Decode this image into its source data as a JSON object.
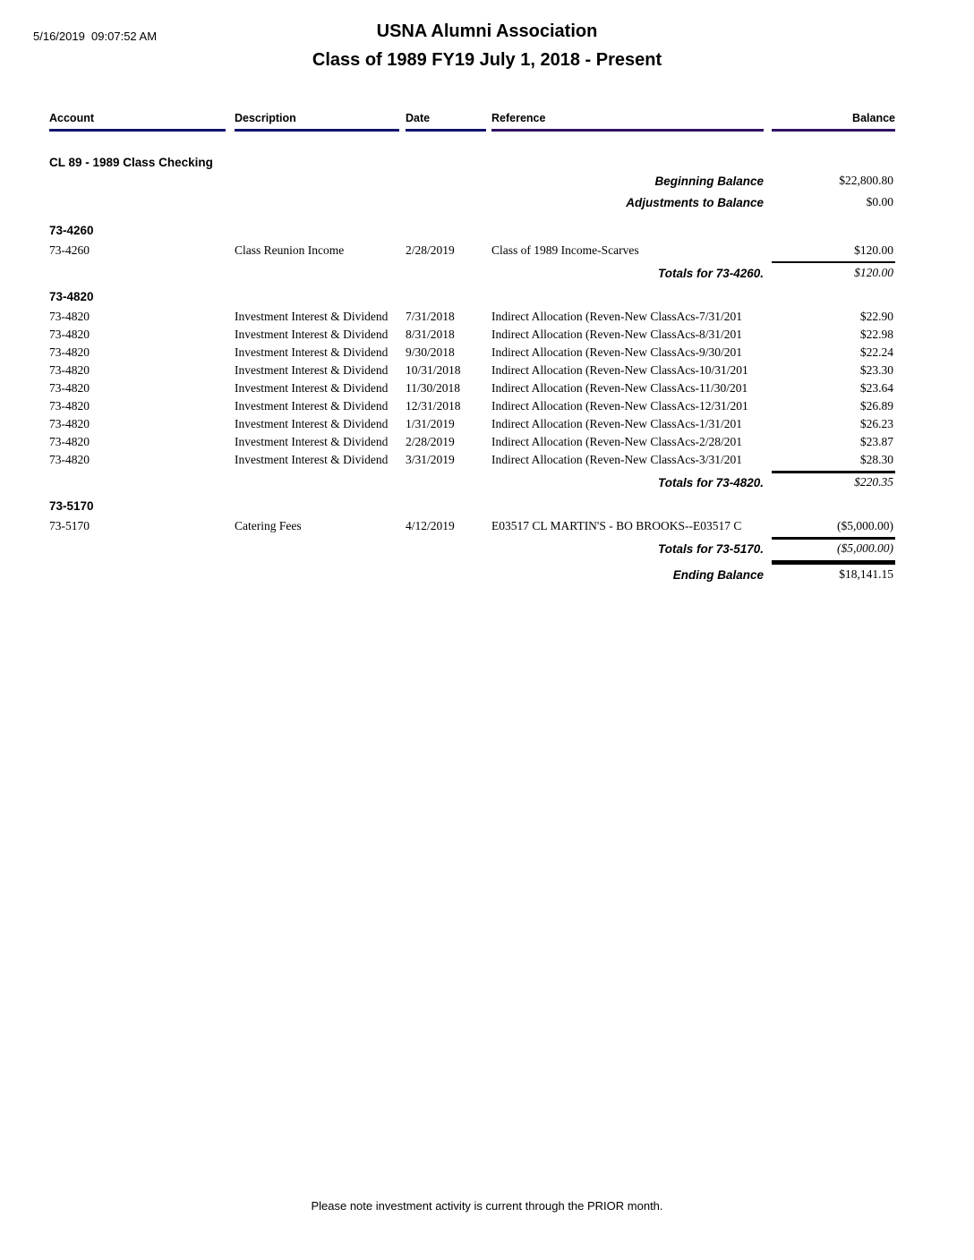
{
  "page": {
    "timestamp": "5/16/2019  09:07:52 AM",
    "title": "USNA Alumni Association",
    "subtitle": "Class of 1989 FY19  July 1, 2018 - Present",
    "footer": "Please note investment activity is current through the PRIOR month."
  },
  "columns": {
    "account": "Account",
    "description": "Description",
    "date": "Date",
    "reference": "Reference",
    "balance": "Balance"
  },
  "group": {
    "title": "CL 89 - 1989 Class Checking"
  },
  "summary": {
    "beginning_label": "Beginning Balance",
    "beginning_value": "$22,800.80",
    "adjustments_label": "Adjustments to Balance",
    "adjustments_value": "$0.00"
  },
  "sections": [
    {
      "code": "73-4260",
      "rows": [
        {
          "account": "73-4260",
          "description": "Class Reunion Income",
          "date": "2/28/2019",
          "reference": "Class of 1989 Income-Scarves",
          "balance": "$120.00"
        }
      ],
      "total_label": "Totals for 73-4260.",
      "total_value": "$120.00"
    },
    {
      "code": "73-4820",
      "rows": [
        {
          "account": "73-4820",
          "description": "Investment Interest & Dividend",
          "date": "7/31/2018",
          "reference": "Indirect Allocation (Reven-New ClassAcs-7/31/201",
          "balance": "$22.90"
        },
        {
          "account": "73-4820",
          "description": "Investment Interest & Dividend",
          "date": "8/31/2018",
          "reference": "Indirect Allocation (Reven-New ClassAcs-8/31/201",
          "balance": "$22.98"
        },
        {
          "account": "73-4820",
          "description": "Investment Interest & Dividend",
          "date": "9/30/2018",
          "reference": "Indirect Allocation (Reven-New ClassAcs-9/30/201",
          "balance": "$22.24"
        },
        {
          "account": "73-4820",
          "description": "Investment Interest & Dividend",
          "date": "10/31/2018",
          "reference": "Indirect Allocation (Reven-New ClassAcs-10/31/201",
          "balance": "$23.30"
        },
        {
          "account": "73-4820",
          "description": "Investment Interest & Dividend",
          "date": "11/30/2018",
          "reference": "Indirect Allocation (Reven-New ClassAcs-11/30/201",
          "balance": "$23.64"
        },
        {
          "account": "73-4820",
          "description": "Investment Interest & Dividend",
          "date": "12/31/2018",
          "reference": "Indirect Allocation (Reven-New ClassAcs-12/31/201",
          "balance": "$26.89"
        },
        {
          "account": "73-4820",
          "description": "Investment Interest & Dividend",
          "date": "1/31/2019",
          "reference": "Indirect Allocation (Reven-New ClassAcs-1/31/201",
          "balance": "$26.23"
        },
        {
          "account": "73-4820",
          "description": "Investment Interest & Dividend",
          "date": "2/28/2019",
          "reference": "Indirect Allocation (Reven-New ClassAcs-2/28/201",
          "balance": "$23.87"
        },
        {
          "account": "73-4820",
          "description": "Investment Interest & Dividend",
          "date": "3/31/2019",
          "reference": "Indirect Allocation (Reven-New ClassAcs-3/31/201",
          "balance": "$28.30"
        }
      ],
      "total_label": "Totals for 73-4820.",
      "total_value": "$220.35"
    },
    {
      "code": "73-5170",
      "rows": [
        {
          "account": "73-5170",
          "description": "Catering Fees",
          "date": "4/12/2019",
          "reference": "E03517 CL MARTIN'S - BO BROOKS--E03517 C",
          "balance": "($5,000.00)"
        }
      ],
      "total_label": "Totals for 73-5170.",
      "total_value": "($5,000.00)"
    }
  ],
  "ending": {
    "label": "Ending Balance",
    "value": "$18,141.15"
  },
  "colors": {
    "header_underline_left": "#10106a",
    "header_underline_right": "#2f1263",
    "rule": "#000000"
  }
}
